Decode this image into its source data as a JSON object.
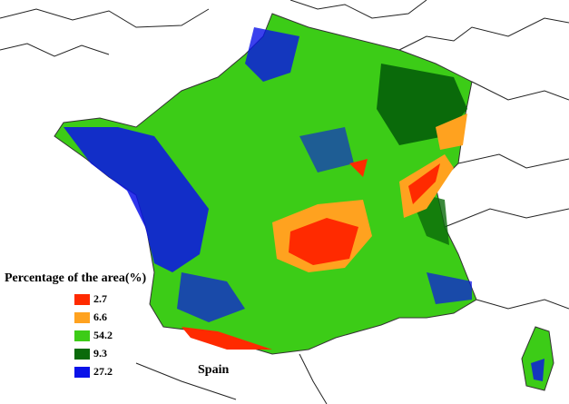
{
  "legend": {
    "title": "Percentage of the area(%)",
    "items": [
      {
        "value": 2.7,
        "color": "#ff2a00"
      },
      {
        "value": 6.6,
        "color": "#ffa21f"
      },
      {
        "value": 54.2,
        "color": "#3ccc17"
      },
      {
        "value": 9.3,
        "color": "#0a6a0a"
      },
      {
        "value": 27.2,
        "color": "#0a12e8"
      }
    ]
  },
  "labels": {
    "country": "Spain"
  }
}
